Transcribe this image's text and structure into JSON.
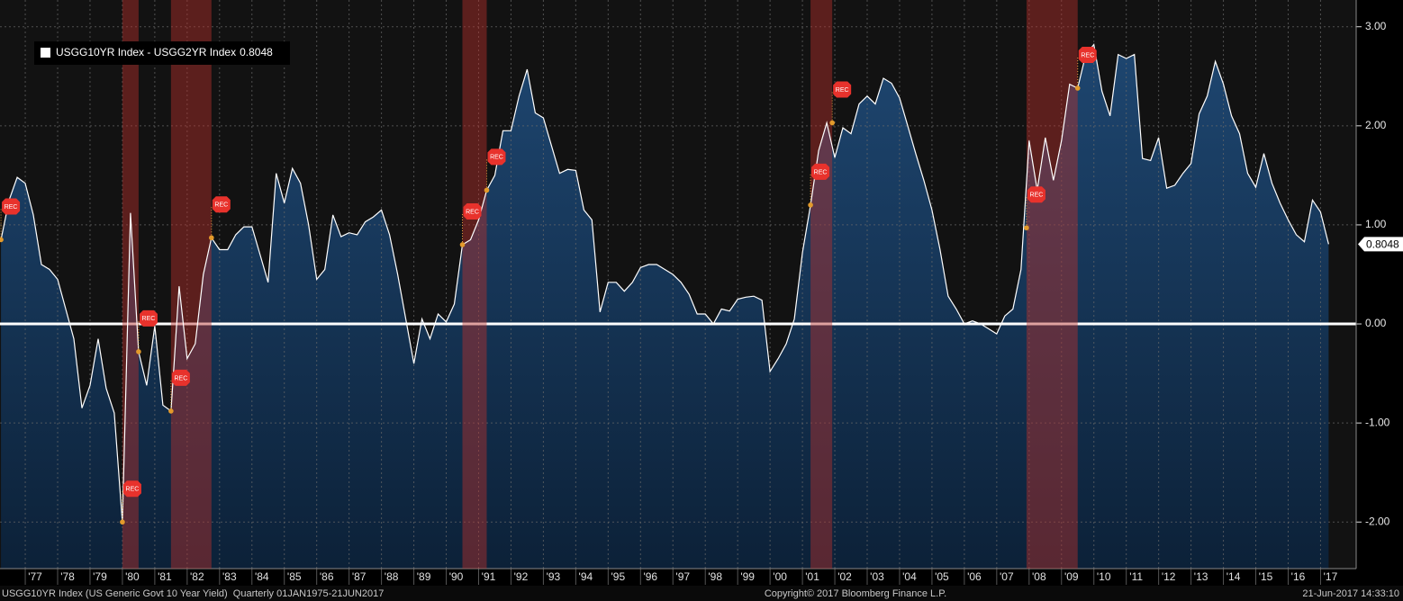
{
  "chart_data": {
    "type": "area",
    "series": [
      {
        "name": "USGG10YR Index - USGG2YR Index",
        "color": "#ffffff",
        "fill": "#163456",
        "values": [
          0.85,
          1.25,
          1.48,
          1.42,
          1.1,
          0.6,
          0.55,
          0.45,
          0.15,
          -0.15,
          -0.85,
          -0.62,
          -0.15,
          -0.65,
          -0.9,
          -2.0,
          1.12,
          -0.28,
          -0.62,
          -0.02,
          -0.82,
          -0.88,
          0.38,
          -0.35,
          -0.2,
          0.5,
          0.87,
          0.75,
          0.75,
          0.9,
          0.98,
          0.98,
          0.7,
          0.42,
          1.52,
          1.22,
          1.57,
          1.42,
          1.0,
          0.45,
          0.55,
          1.1,
          0.88,
          0.92,
          0.9,
          1.03,
          1.08,
          1.15,
          0.9,
          0.5,
          0.05,
          -0.4,
          0.05,
          -0.15,
          0.1,
          0.02,
          0.2,
          0.8,
          0.85,
          1.05,
          1.35,
          1.5,
          1.95,
          1.95,
          2.3,
          2.57,
          2.13,
          2.08,
          1.8,
          1.52,
          1.56,
          1.55,
          1.15,
          1.05,
          0.12,
          0.42,
          0.42,
          0.33,
          0.42,
          0.57,
          0.6,
          0.6,
          0.55,
          0.5,
          0.42,
          0.3,
          0.1,
          0.1,
          0.0,
          0.15,
          0.13,
          0.25,
          0.27,
          0.28,
          0.24,
          -0.48,
          -0.35,
          -0.2,
          0.05,
          0.72,
          1.2,
          1.75,
          2.03,
          1.68,
          1.98,
          1.92,
          2.22,
          2.3,
          2.22,
          2.48,
          2.43,
          2.28,
          2.0,
          1.72,
          1.45,
          1.15,
          0.75,
          0.28,
          0.15,
          0.0,
          0.03,
          0.0,
          -0.05,
          -0.1,
          0.08,
          0.15,
          0.55,
          1.85,
          1.35,
          1.88,
          1.45,
          1.85,
          2.42,
          2.38,
          2.72,
          2.82,
          2.35,
          2.1,
          2.72,
          2.68,
          2.72,
          1.67,
          1.65,
          1.88,
          1.37,
          1.4,
          1.52,
          1.62,
          2.12,
          2.3,
          2.65,
          2.42,
          2.1,
          1.92,
          1.52,
          1.38,
          1.72,
          1.42,
          1.22,
          1.05,
          0.9,
          0.83,
          1.25,
          1.13,
          0.8048
        ]
      }
    ],
    "x": [
      1976.25,
      1976.5,
      1976.75,
      1977,
      1977.25,
      1977.5,
      1977.75,
      1978,
      1978.25,
      1978.5,
      1978.75,
      1979,
      1979.25,
      1979.5,
      1979.75,
      1980,
      1980.25,
      1980.5,
      1980.75,
      1981,
      1981.25,
      1981.5,
      1981.75,
      1982,
      1982.25,
      1982.5,
      1982.75,
      1983,
      1983.25,
      1983.5,
      1983.75,
      1984,
      1984.25,
      1984.5,
      1984.75,
      1985,
      1985.25,
      1985.5,
      1985.75,
      1986,
      1986.25,
      1986.5,
      1986.75,
      1987,
      1987.25,
      1987.5,
      1987.75,
      1988,
      1988.25,
      1988.5,
      1988.75,
      1989,
      1989.25,
      1989.5,
      1989.75,
      1990,
      1990.25,
      1990.5,
      1990.75,
      1991,
      1991.25,
      1991.5,
      1991.75,
      1992,
      1992.25,
      1992.5,
      1992.75,
      1993,
      1993.25,
      1993.5,
      1993.75,
      1994,
      1994.25,
      1994.5,
      1994.75,
      1995,
      1995.25,
      1995.5,
      1995.75,
      1996,
      1996.25,
      1996.5,
      1996.75,
      1997,
      1997.25,
      1997.5,
      1997.75,
      1998,
      1998.25,
      1998.5,
      1998.75,
      1999,
      1999.25,
      1999.5,
      1999.75,
      2000,
      2000.25,
      2000.5,
      2000.75,
      2001,
      2001.25,
      2001.5,
      2001.75,
      2002,
      2002.25,
      2002.5,
      2002.75,
      2003,
      2003.25,
      2003.5,
      2003.75,
      2004,
      2004.25,
      2004.5,
      2004.75,
      2005,
      2005.25,
      2005.5,
      2005.75,
      2006,
      2006.25,
      2006.5,
      2006.75,
      2007,
      2007.25,
      2007.5,
      2007.75,
      2008,
      2008.25,
      2008.5,
      2008.75,
      2009,
      2009.25,
      2009.5,
      2009.75,
      2010,
      2010.25,
      2010.5,
      2010.75,
      2011,
      2011.25,
      2011.5,
      2011.75,
      2012,
      2012.25,
      2012.5,
      2012.75,
      2013,
      2013.25,
      2013.5,
      2013.75,
      2014,
      2014.25,
      2014.5,
      2014.75,
      2015,
      2015.25,
      2015.5,
      2015.75,
      2016,
      2016.25,
      2016.5,
      2016.75,
      2017,
      2017.25
    ],
    "xlim": [
      1976.22,
      2018.1
    ],
    "xticks": [
      {
        "value": 1977,
        "label": "'77"
      },
      {
        "value": 1978,
        "label": "'78"
      },
      {
        "value": 1979,
        "label": "'79"
      },
      {
        "value": 1980,
        "label": "'80"
      },
      {
        "value": 1981,
        "label": "'81"
      },
      {
        "value": 1982,
        "label": "'82"
      },
      {
        "value": 1983,
        "label": "'83"
      },
      {
        "value": 1984,
        "label": "'84"
      },
      {
        "value": 1985,
        "label": "'85"
      },
      {
        "value": 1986,
        "label": "'86"
      },
      {
        "value": 1987,
        "label": "'87"
      },
      {
        "value": 1988,
        "label": "'88"
      },
      {
        "value": 1989,
        "label": "'89"
      },
      {
        "value": 1990,
        "label": "'90"
      },
      {
        "value": 1991,
        "label": "'91"
      },
      {
        "value": 1992,
        "label": "'92"
      },
      {
        "value": 1993,
        "label": "'93"
      },
      {
        "value": 1994,
        "label": "'94"
      },
      {
        "value": 1995,
        "label": "'95"
      },
      {
        "value": 1996,
        "label": "'96"
      },
      {
        "value": 1997,
        "label": "'97"
      },
      {
        "value": 1998,
        "label": "'98"
      },
      {
        "value": 1999,
        "label": "'99"
      },
      {
        "value": 2000,
        "label": "'00"
      },
      {
        "value": 2001,
        "label": "'01"
      },
      {
        "value": 2002,
        "label": "'02"
      },
      {
        "value": 2003,
        "label": "'03"
      },
      {
        "value": 2004,
        "label": "'04"
      },
      {
        "value": 2005,
        "label": "'05"
      },
      {
        "value": 2006,
        "label": "'06"
      },
      {
        "value": 2007,
        "label": "'07"
      },
      {
        "value": 2008,
        "label": "'08"
      },
      {
        "value": 2009,
        "label": "'09"
      },
      {
        "value": 2010,
        "label": "'10"
      },
      {
        "value": 2011,
        "label": "'11"
      },
      {
        "value": 2012,
        "label": "'12"
      },
      {
        "value": 2013,
        "label": "'13"
      },
      {
        "value": 2014,
        "label": "'14"
      },
      {
        "value": 2015,
        "label": "'15"
      },
      {
        "value": 2016,
        "label": "'16"
      },
      {
        "value": 2017,
        "label": "'17"
      }
    ],
    "ylim": [
      -2.47,
      3.27
    ],
    "yticks": [
      {
        "value": 3,
        "label": "3.00"
      },
      {
        "value": 2,
        "label": "2.00"
      },
      {
        "value": 1,
        "label": "1.00"
      },
      {
        "value": 0,
        "label": "0.00"
      },
      {
        "value": -1,
        "label": "-1.00"
      },
      {
        "value": -2,
        "label": "-2.00"
      }
    ],
    "grid": true,
    "recessions": [
      {
        "start": 1980.0,
        "end": 1980.5
      },
      {
        "start": 1981.5,
        "end": 1982.75
      },
      {
        "start": 1990.5,
        "end": 1991.25
      },
      {
        "start": 2001.25,
        "end": 2001.92
      },
      {
        "start": 2007.92,
        "end": 2009.5
      }
    ],
    "recession_color": "#b8302c",
    "rec_markers": [
      {
        "x": 1976.25,
        "y": 0.85,
        "label": "REC"
      },
      {
        "x": 1980.0,
        "y": -2.0,
        "label": "REC"
      },
      {
        "x": 1980.5,
        "y": -0.28,
        "label": "REC"
      },
      {
        "x": 1981.5,
        "y": -0.88,
        "label": "REC"
      },
      {
        "x": 1982.75,
        "y": 0.87,
        "label": "REC"
      },
      {
        "x": 1990.5,
        "y": 0.8,
        "label": "REC"
      },
      {
        "x": 1991.25,
        "y": 1.35,
        "label": "REC"
      },
      {
        "x": 2001.25,
        "y": 1.2,
        "label": "REC"
      },
      {
        "x": 2001.92,
        "y": 2.03,
        "label": "REC"
      },
      {
        "x": 2007.92,
        "y": 0.97,
        "label": "REC"
      },
      {
        "x": 2009.5,
        "y": 2.38,
        "label": "REC"
      }
    ],
    "footnote": "USGG10YR Index (US Generic Govt 10 Year Yield)  Quarterly 01JAN1975-21JUN2017",
    "source": "Copyright© 2017 Bloomberg Finance L.P.",
    "timestamp": "21-Jun-2017 14:33:10"
  }
}
